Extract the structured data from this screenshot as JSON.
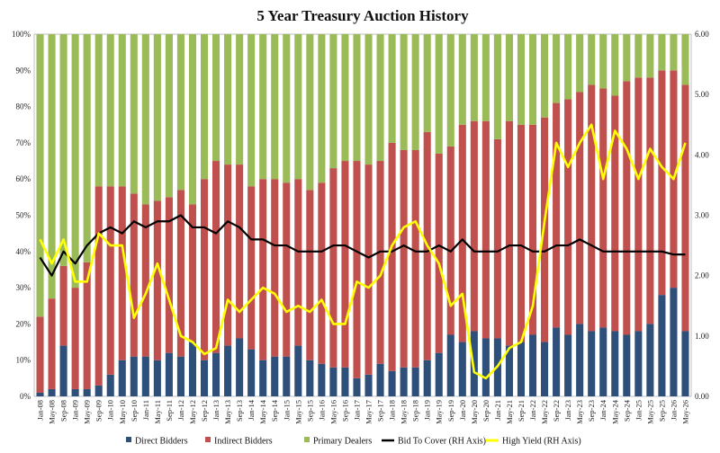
{
  "chart_data": {
    "type": "bar",
    "title": "5 Year Treasury Auction History",
    "xlabel": "",
    "ylabel": "",
    "y_left_ticks": [
      "0%",
      "10%",
      "20%",
      "30%",
      "40%",
      "50%",
      "60%",
      "70%",
      "80%",
      "90%",
      "100%"
    ],
    "y_right_ticks": [
      "0.00",
      "1.00",
      "2.00",
      "3.00",
      "4.00",
      "5.00",
      "6.00"
    ],
    "ylim_left": [
      0,
      100
    ],
    "ylim_right": [
      0,
      6
    ],
    "stacked": true,
    "grid": false,
    "legend_position": "bottom",
    "x_tick_labels": [
      "Jan-08",
      "May-08",
      "Sep-08",
      "Jan-09",
      "May-09",
      "Sep-09",
      "Jan-10",
      "May-10",
      "Sep-10",
      "Jan-11",
      "May-11",
      "Sep-11",
      "Jan-12",
      "May-12",
      "Sep-12",
      "Jan-13",
      "May-13",
      "Sep-13",
      "Jan-14",
      "May-14",
      "Sep-14",
      "Jan-15",
      "May-15",
      "Sep-15",
      "Jan-16",
      "May-16",
      "Sep-16",
      "Jan-17",
      "May-17",
      "Sep-17",
      "Jan-18",
      "May-18",
      "Sep-18",
      "Jan-19",
      "May-19",
      "Sep-19",
      "Jan-20",
      "May-20",
      "Sep-20",
      "Jan-21",
      "May-21",
      "Sep-21",
      "Jan-22",
      "May-22",
      "Sep-22",
      "Jan-23",
      "May-23",
      "Sep-23",
      "Jan-24",
      "May-24",
      "Sep-24",
      "Jan-25",
      "May-25",
      "Sep-25",
      "Jan-26",
      "May-26"
    ],
    "series": [
      {
        "name": "Direct Bidders",
        "axis": "left",
        "kind": "bar",
        "color": "#2e4f7a",
        "values": [
          1,
          2,
          14,
          2,
          2,
          3,
          6,
          10,
          11,
          11,
          10,
          12,
          11,
          15,
          10,
          12,
          14,
          16,
          13,
          10,
          11,
          11,
          14,
          10,
          9,
          8,
          8,
          5,
          6,
          9,
          7,
          8,
          8,
          10,
          12,
          17,
          15,
          18,
          16,
          16,
          14,
          15,
          17,
          15,
          19,
          17,
          20,
          18,
          19,
          18,
          17,
          18,
          20,
          28,
          30,
          18
        ]
      },
      {
        "name": "Indirect Bidders",
        "axis": "left",
        "kind": "bar",
        "color": "#c0504d",
        "values": [
          21,
          25,
          22,
          28,
          35,
          55,
          52,
          48,
          45,
          42,
          44,
          43,
          46,
          38,
          50,
          53,
          50,
          48,
          45,
          50,
          49,
          48,
          46,
          47,
          50,
          55,
          57,
          60,
          58,
          56,
          63,
          60,
          60,
          63,
          55,
          52,
          60,
          58,
          60,
          55,
          62,
          60,
          58,
          62,
          62,
          65,
          64,
          68,
          66,
          65,
          70,
          70,
          68,
          62,
          60,
          68
        ]
      },
      {
        "name": "Primary Dealers",
        "axis": "left",
        "kind": "bar",
        "color": "#9bbb59",
        "values": [
          78,
          73,
          64,
          70,
          63,
          42,
          42,
          42,
          44,
          47,
          46,
          45,
          43,
          47,
          40,
          35,
          36,
          36,
          42,
          40,
          40,
          41,
          40,
          43,
          41,
          37,
          35,
          35,
          36,
          35,
          30,
          32,
          32,
          27,
          33,
          31,
          25,
          24,
          24,
          29,
          24,
          25,
          25,
          23,
          19,
          18,
          16,
          14,
          15,
          17,
          13,
          12,
          12,
          10,
          10,
          14
        ]
      },
      {
        "name": "Bid To Cover (RH Axis)",
        "axis": "right",
        "kind": "line",
        "color": "#000000",
        "values": [
          2.3,
          2.0,
          2.4,
          2.2,
          2.5,
          2.7,
          2.8,
          2.7,
          2.9,
          2.8,
          2.9,
          2.9,
          3.0,
          2.8,
          2.8,
          2.7,
          2.9,
          2.8,
          2.6,
          2.6,
          2.5,
          2.5,
          2.4,
          2.4,
          2.4,
          2.5,
          2.5,
          2.4,
          2.3,
          2.4,
          2.4,
          2.5,
          2.4,
          2.4,
          2.5,
          2.4,
          2.6,
          2.4,
          2.4,
          2.4,
          2.5,
          2.5,
          2.4,
          2.4,
          2.5,
          2.5,
          2.6,
          2.5,
          2.4,
          2.4,
          2.4,
          2.4,
          2.4,
          2.4,
          2.35,
          2.35
        ]
      },
      {
        "name": "High Yield (RH Axis)",
        "axis": "right",
        "kind": "line",
        "color": "#ffff00",
        "values": [
          2.6,
          2.2,
          2.6,
          1.9,
          1.9,
          2.7,
          2.5,
          2.5,
          1.3,
          1.7,
          2.2,
          1.6,
          1.0,
          0.9,
          0.7,
          0.8,
          1.6,
          1.4,
          1.6,
          1.8,
          1.7,
          1.4,
          1.5,
          1.4,
          1.6,
          1.2,
          1.2,
          1.9,
          1.8,
          2.0,
          2.5,
          2.8,
          2.9,
          2.5,
          2.2,
          1.5,
          1.7,
          0.4,
          0.3,
          0.5,
          0.8,
          0.9,
          1.5,
          2.9,
          4.2,
          3.8,
          4.2,
          4.5,
          3.6,
          4.4,
          4.1,
          3.6,
          4.1,
          3.8,
          3.6,
          4.2
        ]
      }
    ]
  }
}
